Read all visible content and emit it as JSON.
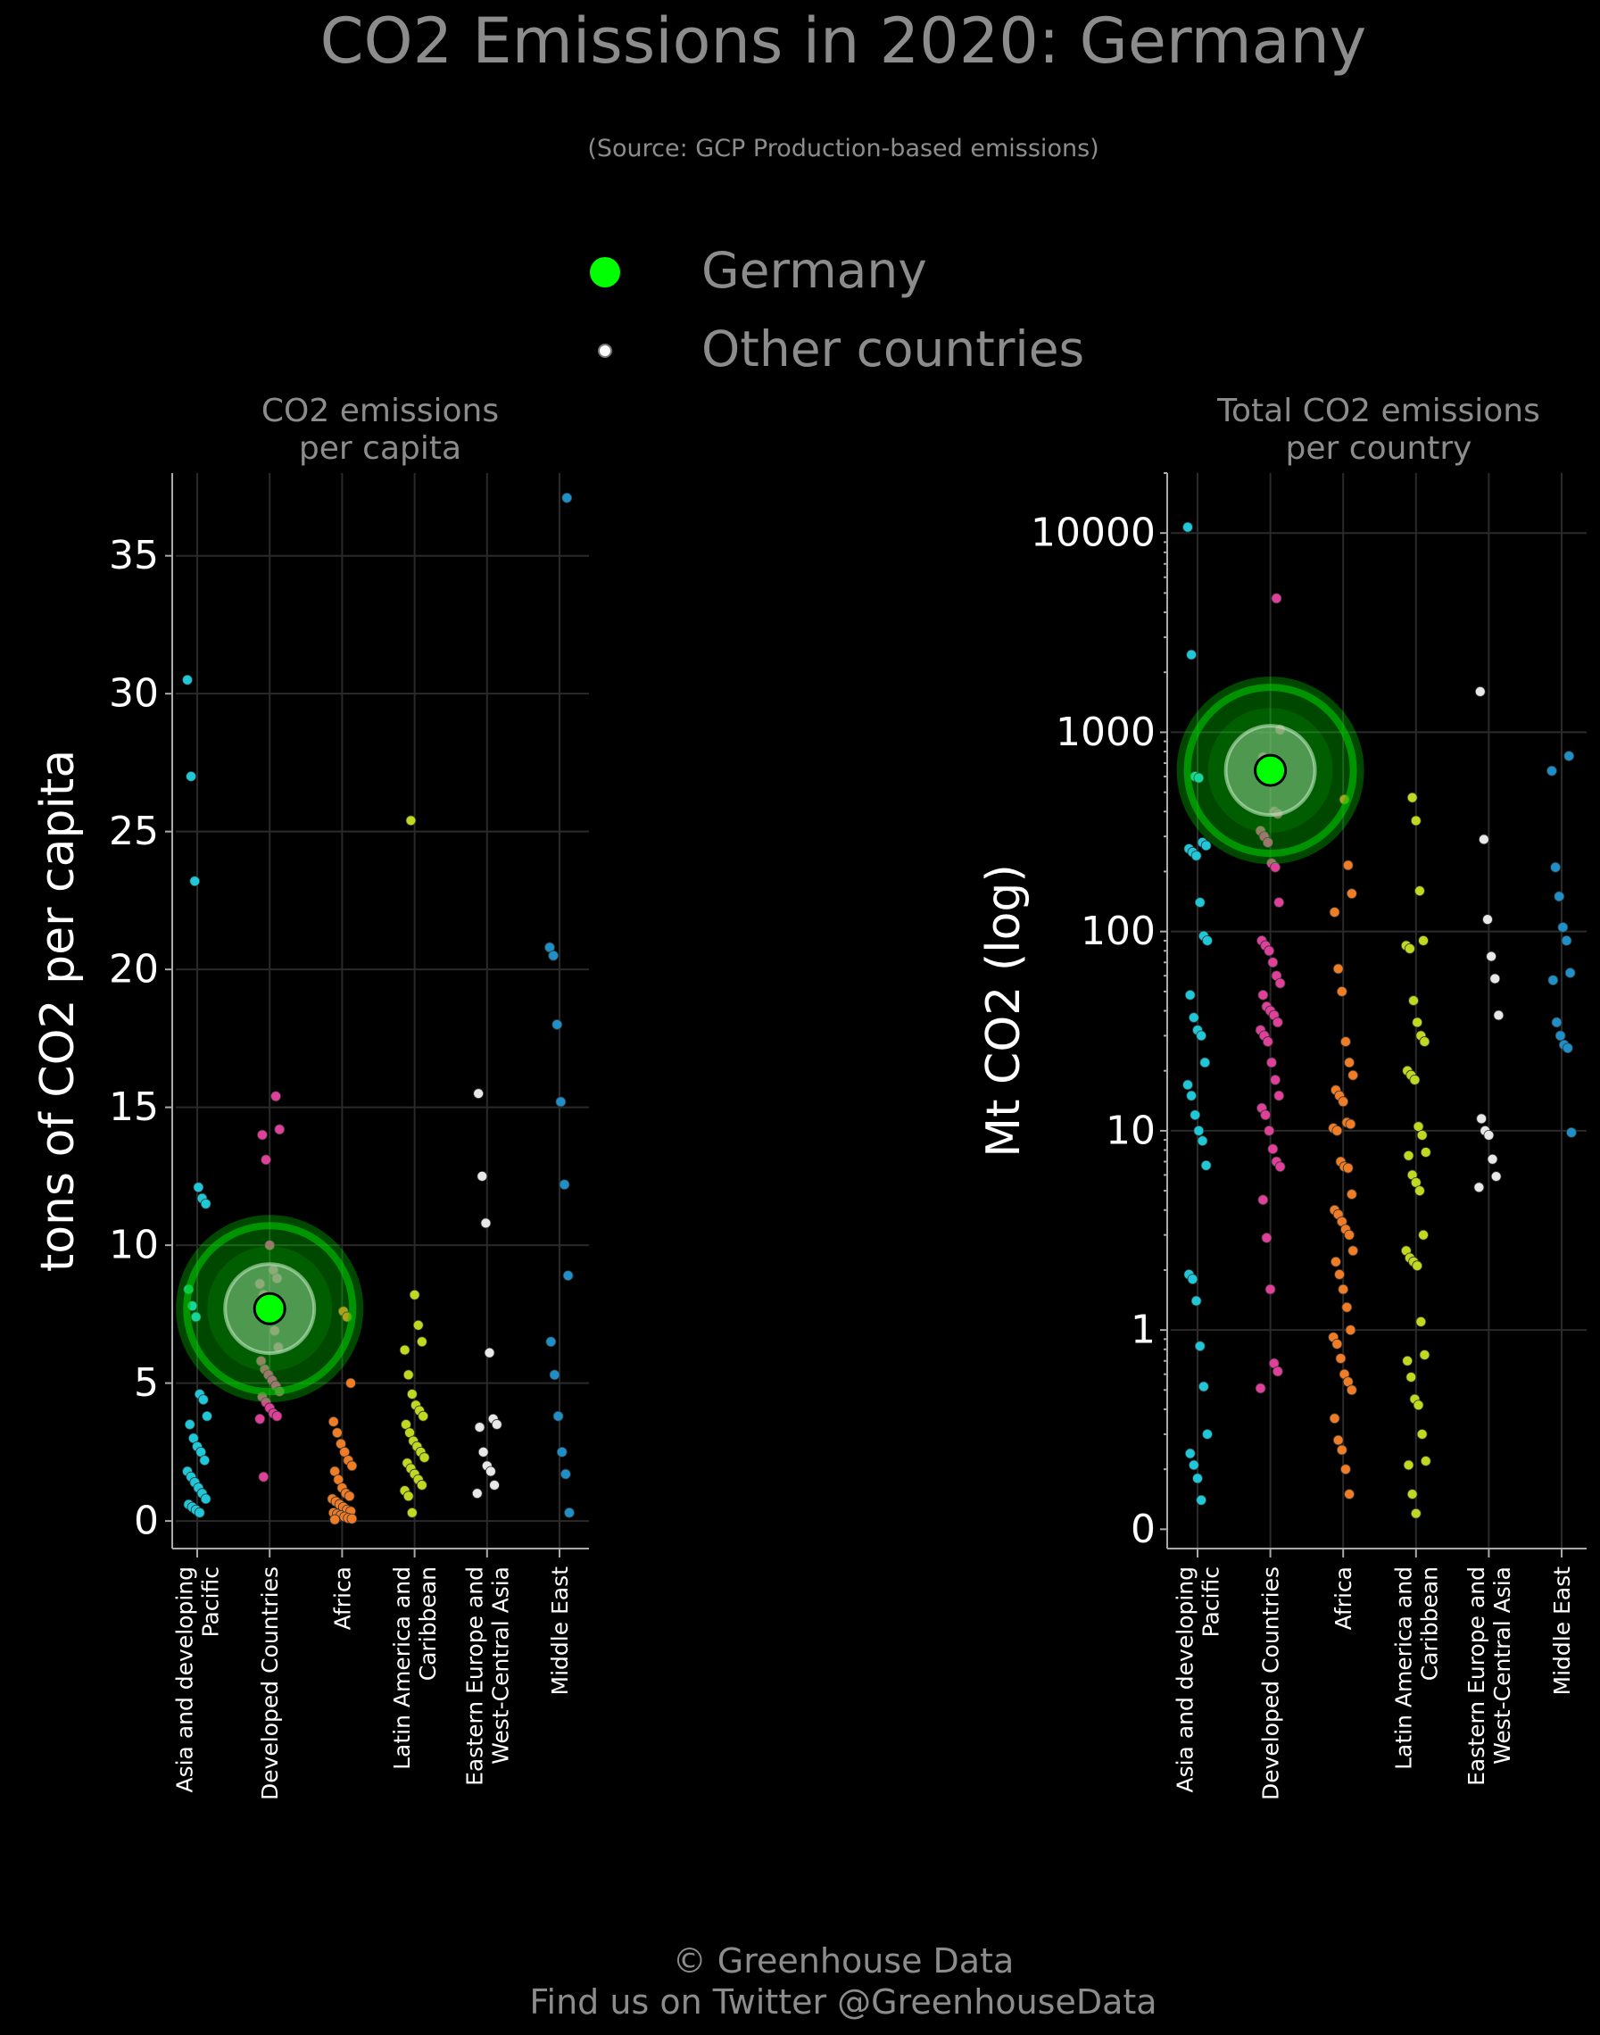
{
  "title": "CO2 Emissions in 2020: Germany",
  "subtitle": "(Source: GCP Production-based emissions)",
  "legend": {
    "highlight": "Germany",
    "others": "Other countries"
  },
  "footer": {
    "line1": "© Greenhouse Data",
    "line2": "Find us on Twitter @GreenhouseData"
  },
  "colors": {
    "background": "#000000",
    "highlight": "#00ff00",
    "Asia and developing Pacific": "#1ec8d8",
    "Developed Countries": "#e0409a",
    "Africa": "#f07d25",
    "Latin America and Caribbean": "#c0d820",
    "Eastern Europe and West-Central Asia": "#e8e8e8",
    "Middle East": "#1e8fc8"
  },
  "chart_data": [
    {
      "type": "scatter",
      "title": "CO2 emissions\nper capita",
      "ylabel": "tons of CO2 per capita",
      "ylim": [
        -1,
        38
      ],
      "yticks": [
        0,
        5,
        10,
        15,
        20,
        25,
        30,
        35
      ],
      "categories": [
        "Asia and developing\nPacific",
        "Developed Countries",
        "Africa",
        "Latin America and\nCaribbean",
        "Eastern Europe and\nWest-Central Asia",
        "Middle East"
      ],
      "highlight": {
        "name": "Germany",
        "category": "Developed Countries",
        "value": 7.7
      },
      "series": [
        {
          "category": "Asia and developing\nPacific",
          "values": [
            30.5,
            27.0,
            23.2,
            12.1,
            11.7,
            11.5,
            8.4,
            7.8,
            7.4,
            4.6,
            4.4,
            3.8,
            3.5,
            3.0,
            2.7,
            2.5,
            2.2,
            1.8,
            1.6,
            1.4,
            1.2,
            1.0,
            0.8,
            0.6,
            0.5,
            0.4,
            0.3
          ]
        },
        {
          "category": "Developed Countries",
          "values": [
            15.4,
            14.2,
            14.0,
            13.1,
            10.0,
            9.1,
            8.8,
            8.6,
            8.2,
            7.9,
            7.3,
            6.9,
            6.3,
            5.8,
            5.5,
            5.3,
            5.1,
            4.9,
            4.7,
            4.5,
            4.3,
            4.1,
            3.9,
            3.8,
            3.7,
            1.6
          ]
        },
        {
          "category": "Africa",
          "values": [
            7.6,
            7.4,
            5.0,
            3.6,
            3.2,
            2.8,
            2.5,
            2.2,
            2.0,
            1.8,
            1.5,
            1.2,
            1.0,
            0.9,
            0.8,
            0.7,
            0.6,
            0.5,
            0.4,
            0.35,
            0.3,
            0.25,
            0.2,
            0.15,
            0.1,
            0.08,
            0.05
          ]
        },
        {
          "category": "Latin America and\nCaribbean",
          "values": [
            25.4,
            8.2,
            7.1,
            6.5,
            6.2,
            5.3,
            4.6,
            4.2,
            4.0,
            3.8,
            3.5,
            3.2,
            2.9,
            2.7,
            2.5,
            2.3,
            2.1,
            1.9,
            1.7,
            1.5,
            1.3,
            1.1,
            0.9,
            0.3
          ]
        },
        {
          "category": "Eastern Europe and\nWest-Central Asia",
          "values": [
            15.5,
            12.5,
            10.8,
            6.1,
            3.7,
            3.5,
            3.4,
            2.5,
            2.0,
            1.8,
            1.3,
            1.0
          ]
        },
        {
          "category": "Middle East",
          "values": [
            37.1,
            20.8,
            20.5,
            18.0,
            15.2,
            12.2,
            8.9,
            6.5,
            5.3,
            3.8,
            2.5,
            1.7,
            0.3
          ]
        }
      ]
    },
    {
      "type": "scatter",
      "title": "Total CO2 emissions\nper country",
      "ylabel": "Mt CO2 (log)",
      "yscale": "log",
      "ylim": [
        0.08,
        20000
      ],
      "yticks": [
        0.1,
        1,
        10,
        100,
        1000,
        10000
      ],
      "yticklabels": [
        "0",
        "1",
        "10",
        "100",
        "1000",
        "10000"
      ],
      "categories": [
        "Asia and developing\nPacific",
        "Developed Countries",
        "Africa",
        "Latin America and\nCaribbean",
        "Eastern Europe and\nWest-Central Asia",
        "Middle East"
      ],
      "highlight": {
        "name": "Germany",
        "category": "Developed Countries",
        "value": 644
      },
      "series": [
        {
          "category": "Asia and developing\nPacific",
          "values": [
            10700,
            2450,
            600,
            590,
            280,
            270,
            260,
            250,
            240,
            140,
            95,
            90,
            48,
            37,
            32,
            30,
            22,
            17,
            15,
            12,
            10,
            8.9,
            6.7,
            1.9,
            1.8,
            1.4,
            0.83,
            0.52,
            0.3,
            0.24,
            0.21,
            0.18,
            0.14
          ]
        },
        {
          "category": "Developed Countries",
          "values": [
            4700,
            1030,
            750,
            620,
            560,
            400,
            390,
            320,
            300,
            280,
            220,
            210,
            140,
            90,
            85,
            80,
            70,
            60,
            55,
            48,
            42,
            40,
            38,
            35,
            32,
            30,
            28,
            22,
            18,
            15,
            13,
            12,
            10,
            8.1,
            7.0,
            6.6,
            4.5,
            2.9,
            1.6,
            0.68,
            0.62,
            0.51
          ]
        },
        {
          "category": "Africa",
          "values": [
            460,
            215,
            155,
            125,
            65,
            50,
            28,
            22,
            19,
            16,
            15,
            14,
            11,
            10.8,
            10.3,
            10,
            7,
            6.6,
            6.5,
            4.8,
            4.0,
            3.8,
            3.5,
            3.2,
            3.0,
            2.5,
            2.2,
            1.9,
            1.6,
            1.3,
            1.0,
            0.92,
            0.85,
            0.72,
            0.6,
            0.55,
            0.5,
            0.36,
            0.28,
            0.25,
            0.2,
            0.15
          ]
        },
        {
          "category": "Latin America and\nCaribbean",
          "values": [
            470,
            360,
            160,
            90,
            85,
            82,
            45,
            35,
            30,
            28,
            20,
            19,
            18,
            10.5,
            9.5,
            7.8,
            7.5,
            6.0,
            5.5,
            5.0,
            3.0,
            2.5,
            2.3,
            2.2,
            2.1,
            1.1,
            0.75,
            0.7,
            0.58,
            0.45,
            0.42,
            0.3,
            0.22,
            0.21,
            0.15,
            0.12
          ]
        },
        {
          "category": "Eastern Europe and\nWest-Central Asia",
          "values": [
            1600,
            290,
            115,
            75,
            58,
            38,
            11.5,
            10,
            9.5,
            7.2,
            5.9,
            5.2
          ]
        },
        {
          "category": "Middle East",
          "values": [
            760,
            640,
            210,
            150,
            105,
            90,
            62,
            57,
            35,
            30,
            27,
            26,
            9.8
          ]
        }
      ]
    }
  ]
}
